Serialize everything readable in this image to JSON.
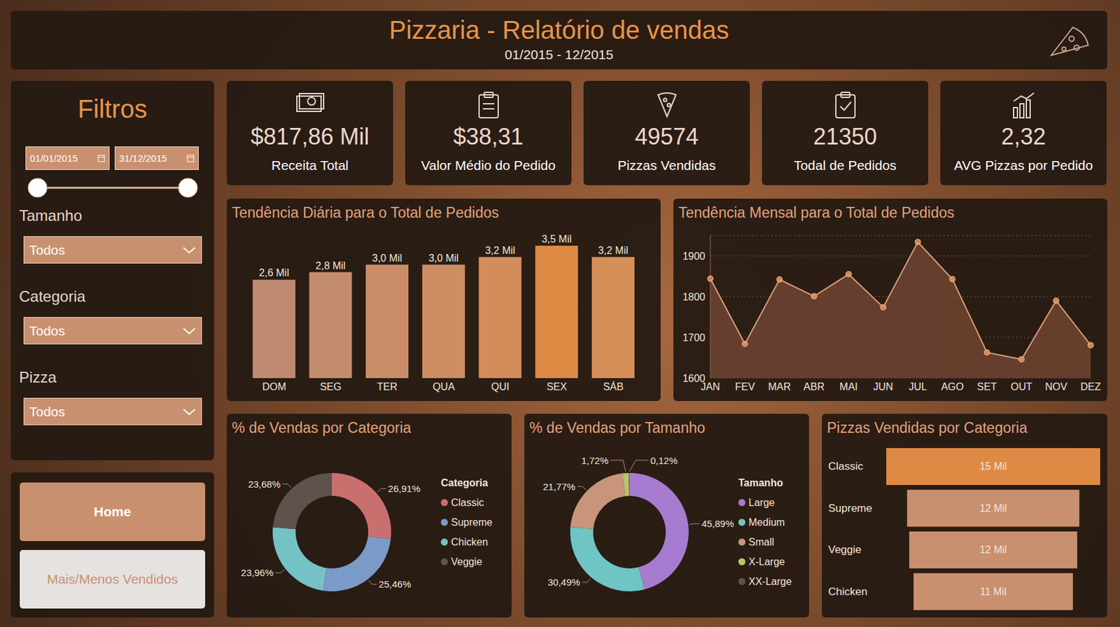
{
  "header": {
    "title": "Pizzaria - Relatório de vendas",
    "subtitle": "01/2015 - 12/2015"
  },
  "filters": {
    "title": "Filtros",
    "date_start": "01/01/2015",
    "date_end": "31/12/2015",
    "dropdowns": [
      {
        "label": "Tamanho",
        "value": "Todos"
      },
      {
        "label": "Categoria",
        "value": "Todos"
      },
      {
        "label": "Pizza",
        "value": "Todos"
      }
    ]
  },
  "navigation": [
    "Home",
    "Mais/Menos Vendidos"
  ],
  "kpis": [
    {
      "value": "$817,86 Mil",
      "label": "Receita Total"
    },
    {
      "value": "$38,31",
      "label": "Valor Médio do Pedido"
    },
    {
      "value": "49574",
      "label": "Pizzas Vendidas"
    },
    {
      "value": "21350",
      "label": "Todal de Pedidos"
    },
    {
      "value": "2,32",
      "label": "AVG Pizzas por Pedido"
    }
  ],
  "chart_data": [
    {
      "type": "bar",
      "title": "Tendência Diária para o Total de Pedidos",
      "categories": [
        "DOM",
        "SEG",
        "TER",
        "QUA",
        "QUI",
        "SEX",
        "SÁB"
      ],
      "values": [
        2.6,
        2.8,
        3.0,
        3.0,
        3.2,
        3.5,
        3.2
      ],
      "value_labels": [
        "2,6 Mil",
        "2,8 Mil",
        "3,0 Mil",
        "3,0 Mil",
        "3,2 Mil",
        "3,5 Mil",
        "3,2 Mil"
      ],
      "colors": [
        "#c08a72",
        "#c48c6e",
        "#cb8d67",
        "#cd8e64",
        "#d48d5a",
        "#de8a45",
        "#d78f58"
      ],
      "ylim": [
        0,
        3.5
      ],
      "data_labels": true,
      "tick_labels": "x"
    },
    {
      "type": "area",
      "title": "Tendência Mensal para o Total de Pedidos",
      "categories": [
        "JAN",
        "FEV",
        "MAR",
        "ABR",
        "MAI",
        "JUN",
        "JUL",
        "AGO",
        "SET",
        "OUT",
        "NOV",
        "DEZ"
      ],
      "values": [
        1844,
        1684,
        1842,
        1801,
        1855,
        1774,
        1934,
        1843,
        1663,
        1646,
        1790,
        1681
      ],
      "color": "#d9a07a",
      "ylim": [
        1600,
        1950
      ],
      "yticks": [
        1600,
        1700,
        1800,
        1900
      ],
      "grid": true,
      "marker": "circle"
    },
    {
      "type": "pie",
      "title": "% de Vendas por Categoria",
      "legend_title": "Categoria",
      "categories": [
        "Classic",
        "Supreme",
        "Chicken",
        "Veggie"
      ],
      "values": [
        26.91,
        25.46,
        23.96,
        23.68
      ],
      "value_labels": [
        "26,91%",
        "25,46%",
        "23,96%",
        "23,68%"
      ],
      "colors": [
        "#c9706f",
        "#7a9ac8",
        "#74c2c4",
        "#5d524c"
      ],
      "legend": "right",
      "data_labels": true
    },
    {
      "type": "pie",
      "title": "% de Vendas por Tamanho",
      "legend_title": "Tamanho",
      "categories": [
        "Large",
        "Medium",
        "Small",
        "X-Large",
        "XX-Large"
      ],
      "values": [
        45.89,
        30.49,
        21.77,
        1.72,
        0.12
      ],
      "value_labels": [
        "45,89%",
        "30,49%",
        "21,77%",
        "1,72%",
        "0,12%"
      ],
      "colors": [
        "#a77bcf",
        "#6fc4c4",
        "#c9957a",
        "#b8c56a",
        "#5d524c"
      ],
      "legend": "right",
      "data_labels": true
    },
    {
      "type": "funnel",
      "title": "Pizzas Vendidas por Categoria",
      "categories": [
        "Classic",
        "Supreme",
        "Veggie",
        "Chicken"
      ],
      "values": [
        14.9,
        12.0,
        11.7,
        11.1
      ],
      "value_labels": [
        "15 Mil",
        "12 Mil",
        "12 Mil",
        "11 Mil"
      ],
      "colors": [
        "#de8a45",
        "#c9906f",
        "#c9906f",
        "#c9906f"
      ],
      "xlim": [
        0,
        15
      ],
      "orientation": "horizontal",
      "data_labels": true,
      "tick_labels": "y"
    }
  ]
}
